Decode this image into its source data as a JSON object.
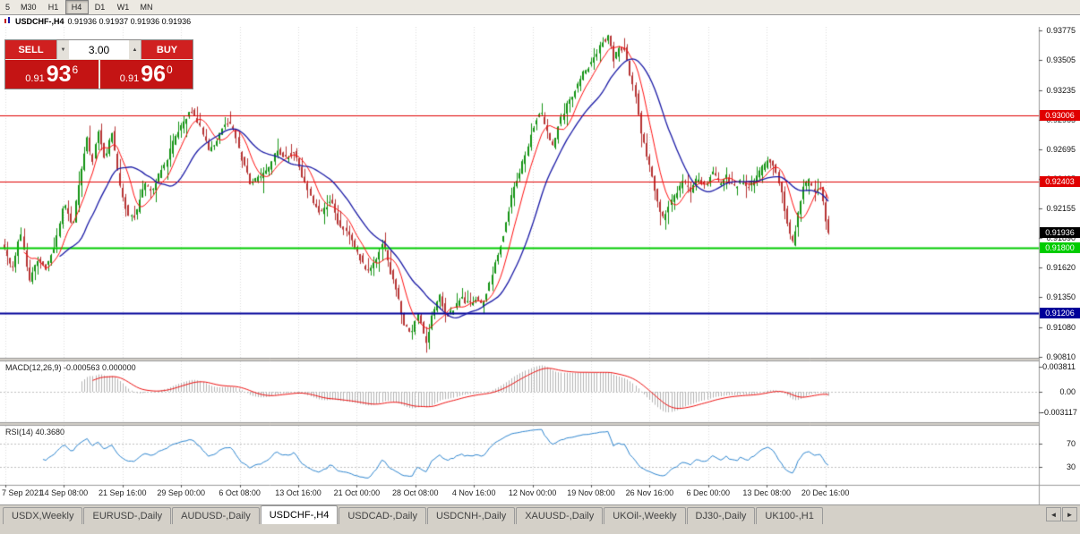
{
  "toolbar": {
    "timeframes": [
      {
        "label": "5",
        "active": false
      },
      {
        "label": "M30",
        "active": false
      },
      {
        "label": "H1",
        "active": false
      },
      {
        "label": "H4",
        "active": true
      },
      {
        "label": "D1",
        "active": false
      },
      {
        "label": "W1",
        "active": false
      },
      {
        "label": "MN",
        "active": false
      }
    ]
  },
  "chart": {
    "title_symbol": "USDCHF-,H4",
    "title_ohlc": "0.91936 0.91937 0.91936 0.91936",
    "trade_panel": {
      "sell_label": "SELL",
      "buy_label": "BUY",
      "volume": "3.00",
      "spinner_down": "▼",
      "spinner_up": "▲",
      "sell_price": {
        "base": "0.91",
        "pips": "93",
        "point": "6"
      },
      "buy_price": {
        "base": "0.91",
        "pips": "96",
        "point": "0"
      }
    },
    "price_ticks": [
      "0.93775",
      "0.93505",
      "0.93235",
      "0.92965",
      "0.92695",
      "0.92425",
      "0.92155",
      "0.91890",
      "0.91620",
      "0.91350",
      "0.91080",
      "0.90810"
    ],
    "line_labels": [
      {
        "label": "0.93006",
        "price": 0.93006,
        "color": "#e00000",
        "weight": 1
      },
      {
        "label": "0.92403",
        "price": 0.92403,
        "color": "#e00000",
        "weight": 1
      },
      {
        "label": "0.91800",
        "price": 0.918,
        "color": "#00cc00",
        "weight": 2
      },
      {
        "label": "0.91206",
        "price": 0.91206,
        "color": "#000099",
        "weight": 2
      }
    ],
    "current_price": {
      "label": "0.91936",
      "value": 0.91936,
      "bg": "#000000"
    },
    "macd": {
      "title": "MACD(12,26,9) -0.000563 0.000000",
      "ticks": [
        "0.003811",
        "0.00",
        "-0.003117"
      ]
    },
    "rsi": {
      "title": "RSI(14) 40.3680",
      "ticks": [
        "70",
        "30"
      ]
    },
    "time_labels": [
      "7 Sep 2021",
      "14 Sep 08:00",
      "21 Sep 16:00",
      "29 Sep 00:00",
      "6 Oct 08:00",
      "13 Oct 16:00",
      "21 Oct 00:00",
      "28 Oct 08:00",
      "4 Nov 16:00",
      "12 Nov 00:00",
      "19 Nov 08:00",
      "26 Nov 16:00",
      "6 Dec 00:00",
      "13 Dec 08:00",
      "20 Dec 16:00"
    ]
  },
  "chart_data": {
    "type": "candlestick",
    "symbol": "USDCHF-",
    "period": "H4",
    "ohlc_current": {
      "open": 0.91936,
      "high": 0.91937,
      "low": 0.91936,
      "close": 0.91936
    },
    "scale": {
      "top": 0.9381,
      "bottom": 0.908
    },
    "y_ticks": [
      0.93775,
      0.93505,
      0.93235,
      0.92965,
      0.92695,
      0.92425,
      0.92155,
      0.9189,
      0.9162,
      0.9135,
      0.9108,
      0.9081
    ],
    "hlines": [
      0.93006,
      0.92403,
      0.918,
      0.91206
    ],
    "moving_averages": [
      {
        "type": "fast",
        "color": "#ff1111"
      },
      {
        "type": "slow",
        "color": "#1a1aa6"
      }
    ],
    "price_path": [
      [
        5,
        0.9183
      ],
      [
        16,
        0.916
      ],
      [
        26,
        0.9192
      ],
      [
        36,
        0.915
      ],
      [
        44,
        0.917
      ],
      [
        54,
        0.9162
      ],
      [
        64,
        0.918
      ],
      [
        74,
        0.9222
      ],
      [
        84,
        0.92
      ],
      [
        92,
        0.924
      ],
      [
        100,
        0.9282
      ],
      [
        106,
        0.9256
      ],
      [
        112,
        0.9288
      ],
      [
        120,
        0.926
      ],
      [
        128,
        0.9285
      ],
      [
        136,
        0.924
      ],
      [
        146,
        0.921
      ],
      [
        154,
        0.9208
      ],
      [
        164,
        0.924
      ],
      [
        172,
        0.923
      ],
      [
        180,
        0.9245
      ],
      [
        190,
        0.9262
      ],
      [
        198,
        0.928
      ],
      [
        208,
        0.9295
      ],
      [
        216,
        0.9306
      ],
      [
        226,
        0.929
      ],
      [
        236,
        0.9268
      ],
      [
        246,
        0.928
      ],
      [
        256,
        0.9296
      ],
      [
        264,
        0.9286
      ],
      [
        272,
        0.9262
      ],
      [
        282,
        0.924
      ],
      [
        292,
        0.9244
      ],
      [
        302,
        0.925
      ],
      [
        312,
        0.9268
      ],
      [
        322,
        0.9262
      ],
      [
        332,
        0.9268
      ],
      [
        342,
        0.9242
      ],
      [
        352,
        0.922
      ],
      [
        362,
        0.9212
      ],
      [
        372,
        0.9224
      ],
      [
        382,
        0.92
      ],
      [
        392,
        0.9192
      ],
      [
        402,
        0.9176
      ],
      [
        412,
        0.9158
      ],
      [
        422,
        0.9168
      ],
      [
        430,
        0.9186
      ],
      [
        438,
        0.916
      ],
      [
        446,
        0.914
      ],
      [
        454,
        0.911
      ],
      [
        462,
        0.9102
      ],
      [
        470,
        0.9122
      ],
      [
        478,
        0.9092
      ],
      [
        486,
        0.912
      ],
      [
        494,
        0.9136
      ],
      [
        502,
        0.9118
      ],
      [
        510,
        0.9124
      ],
      [
        518,
        0.9136
      ],
      [
        526,
        0.9128
      ],
      [
        534,
        0.9134
      ],
      [
        542,
        0.9126
      ],
      [
        550,
        0.915
      ],
      [
        558,
        0.9172
      ],
      [
        566,
        0.9196
      ],
      [
        574,
        0.9226
      ],
      [
        582,
        0.9246
      ],
      [
        590,
        0.9266
      ],
      [
        598,
        0.929
      ],
      [
        606,
        0.9306
      ],
      [
        614,
        0.9286
      ],
      [
        620,
        0.927
      ],
      [
        628,
        0.9296
      ],
      [
        636,
        0.931
      ],
      [
        644,
        0.9322
      ],
      [
        652,
        0.9336
      ],
      [
        660,
        0.9345
      ],
      [
        668,
        0.9354
      ],
      [
        676,
        0.9368
      ],
      [
        682,
        0.9372
      ],
      [
        688,
        0.9352
      ],
      [
        694,
        0.936
      ],
      [
        700,
        0.9363
      ],
      [
        706,
        0.934
      ],
      [
        712,
        0.9322
      ],
      [
        718,
        0.9288
      ],
      [
        724,
        0.9268
      ],
      [
        730,
        0.9248
      ],
      [
        738,
        0.9218
      ],
      [
        744,
        0.9206
      ],
      [
        750,
        0.9218
      ],
      [
        758,
        0.923
      ],
      [
        766,
        0.9242
      ],
      [
        774,
        0.923
      ],
      [
        782,
        0.9244
      ],
      [
        790,
        0.9236
      ],
      [
        798,
        0.925
      ],
      [
        806,
        0.9238
      ],
      [
        814,
        0.9246
      ],
      [
        822,
        0.9234
      ],
      [
        830,
        0.924
      ],
      [
        838,
        0.9236
      ],
      [
        846,
        0.9242
      ],
      [
        854,
        0.9252
      ],
      [
        862,
        0.926
      ],
      [
        870,
        0.9248
      ],
      [
        876,
        0.9228
      ],
      [
        882,
        0.92
      ],
      [
        888,
        0.9184
      ],
      [
        894,
        0.921
      ],
      [
        900,
        0.9234
      ],
      [
        906,
        0.9242
      ],
      [
        912,
        0.923
      ],
      [
        918,
        0.9238
      ],
      [
        924,
        0.921
      ],
      [
        928,
        0.91936
      ]
    ],
    "macd": {
      "fast": 12,
      "slow": 26,
      "signal": 9,
      "value": -0.000563,
      "signal_value": 0.0,
      "axis_max": 0.003811,
      "axis_min": -0.003117
    },
    "rsi": {
      "period": 14,
      "value": 40.368,
      "levels": [
        70,
        30
      ]
    }
  },
  "tabs": {
    "items": [
      {
        "label": "USDX,Weekly",
        "active": false
      },
      {
        "label": "EURUSD-,Daily",
        "active": false
      },
      {
        "label": "AUDUSD-,Daily",
        "active": false
      },
      {
        "label": "USDCHF-,H4",
        "active": true
      },
      {
        "label": "USDCAD-,Daily",
        "active": false
      },
      {
        "label": "USDCNH-,Daily",
        "active": false
      },
      {
        "label": "XAUUSD-,Daily",
        "active": false
      },
      {
        "label": "UKOil-,Weekly",
        "active": false
      },
      {
        "label": "DJ30-,Daily",
        "active": false
      },
      {
        "label": "UK100-,H1",
        "active": false
      }
    ],
    "nav_left": "◄",
    "nav_right": "►"
  }
}
